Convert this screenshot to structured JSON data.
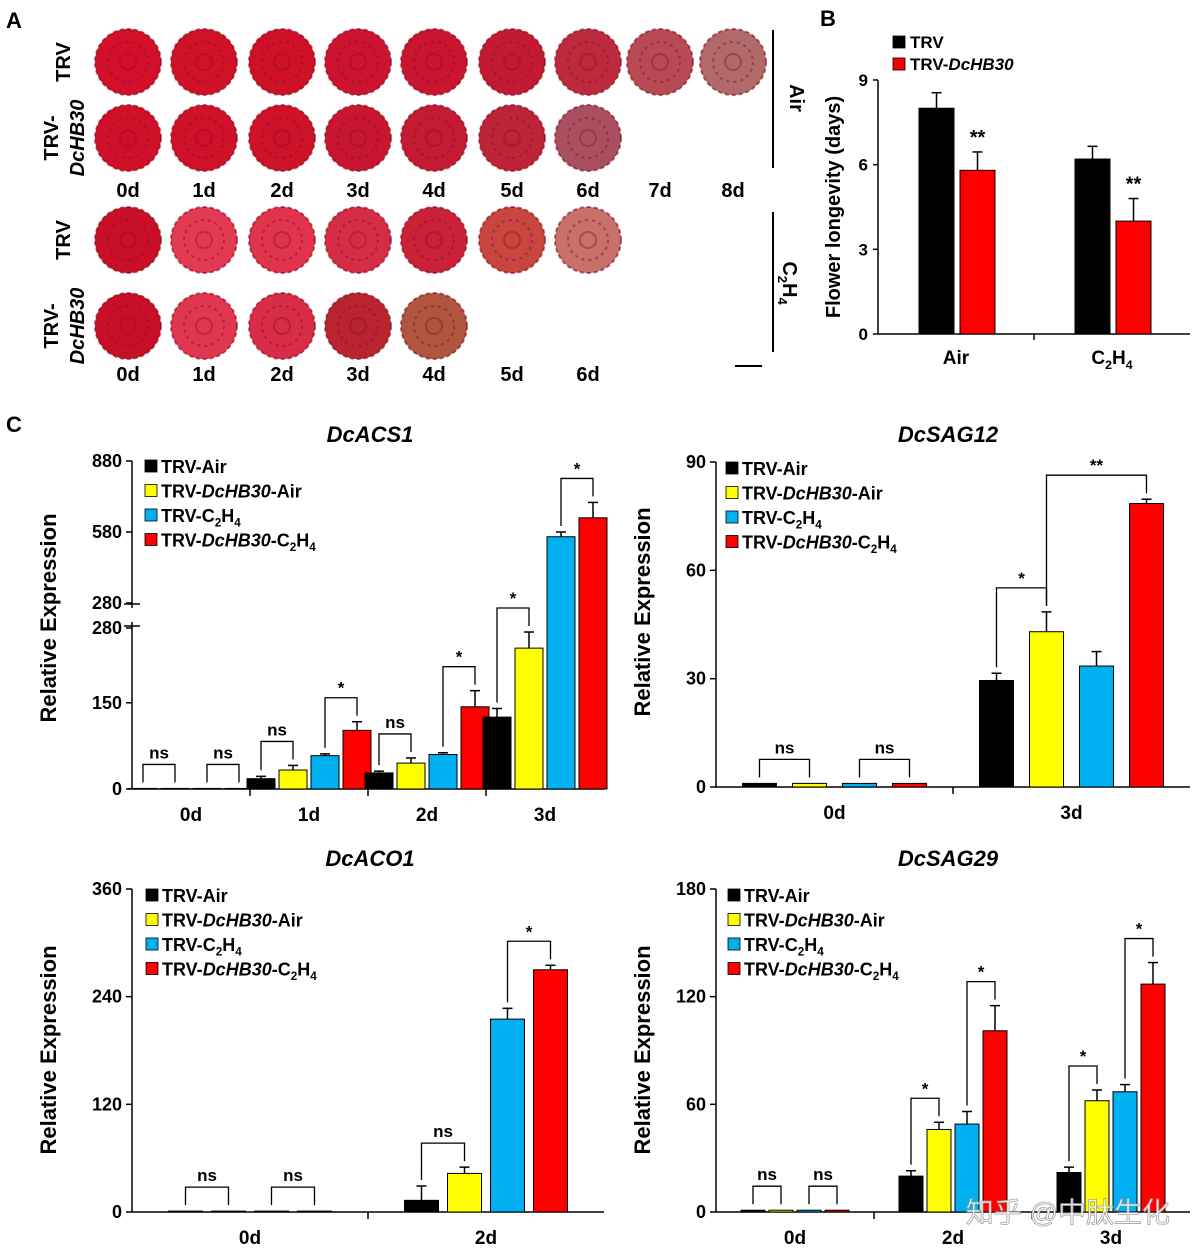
{
  "panel_labels": {
    "a": "A",
    "b": "B",
    "c": "C"
  },
  "panel_a": {
    "rows": [
      {
        "line1": "TRV",
        "line2": ""
      },
      {
        "line1": "TRV-",
        "line2": "DcHB30"
      },
      {
        "line1": "TRV",
        "line2": ""
      },
      {
        "line1": "TRV-",
        "line2": "DcHB30"
      }
    ],
    "air_days": [
      "0d",
      "1d",
      "2d",
      "3d",
      "4d",
      "5d",
      "6d",
      "7d",
      "8d"
    ],
    "eth_days": [
      "0d",
      "1d",
      "2d",
      "3d",
      "4d",
      "5d",
      "6d"
    ],
    "air_label": "Air",
    "eth_label": "C2H4",
    "flower_counts": [
      9,
      7,
      7,
      5
    ],
    "flower_colors": [
      [
        "#d2102a",
        "#d01229",
        "#cf1128",
        "#cc1430",
        "#c91530",
        "#c21a33",
        "#be2a3d",
        "#b84a55",
        "#b06a6a"
      ],
      [
        "#d01029",
        "#cf1129",
        "#cd1229",
        "#c81630",
        "#c41a33",
        "#bd2438",
        "#a85060"
      ],
      [
        "#c80f28",
        "#e23a52",
        "#e0344d",
        "#d52d45",
        "#c92238",
        "#c9463f",
        "#c8706a"
      ],
      [
        "#c80f28",
        "#e03650",
        "#d82c48",
        "#b8242f",
        "#b0553e"
      ]
    ]
  },
  "chart_data": [
    {
      "id": "B",
      "type": "bar",
      "title": "",
      "ylabel": "Flower longevity (days)",
      "xlabel": "",
      "categories": [
        "Air",
        "C2H4"
      ],
      "ylim": [
        0,
        9
      ],
      "yticks": [
        0,
        3,
        6,
        9
      ],
      "legend": "top-left",
      "series": [
        {
          "name": "TRV",
          "color": "#000000",
          "values": [
            8.0,
            6.2
          ],
          "errors": [
            0.55,
            0.45
          ]
        },
        {
          "name": "TRV-DcHB30",
          "color": "#ff0000",
          "values": [
            5.8,
            4.0
          ],
          "errors": [
            0.65,
            0.8
          ]
        }
      ],
      "annotations": [
        "**",
        "**"
      ]
    },
    {
      "id": "C1",
      "type": "bar",
      "title": "DcACS1",
      "ylabel": "Relative Expression",
      "categories": [
        "0d",
        "1d",
        "2d",
        "3d"
      ],
      "ylim": [
        0,
        880
      ],
      "axis_break": {
        "lower": [
          0,
          280
        ],
        "upper": [
          280,
          880
        ]
      },
      "yticks_lower": [
        0,
        150,
        280
      ],
      "yticks_upper": [
        280,
        580,
        880
      ],
      "legend": "top-left",
      "series": [
        {
          "name": "TRV-Air",
          "color": "#000000",
          "values": [
            1,
            18,
            28,
            125
          ],
          "errors": [
            0,
            4,
            3,
            15
          ]
        },
        {
          "name": "TRV-DcHB30-Air",
          "color": "#ffff00",
          "values": [
            1,
            33,
            45,
            245
          ],
          "errors": [
            0,
            8,
            9,
            28
          ]
        },
        {
          "name": "TRV-C2H4",
          "color": "#00b0f0",
          "values": [
            1,
            58,
            60,
            560
          ],
          "errors": [
            0,
            3,
            3,
            20
          ]
        },
        {
          "name": "TRV-DcHB30-C2H4",
          "color": "#ff0000",
          "values": [
            1,
            102,
            143,
            640
          ],
          "errors": [
            0,
            15,
            28,
            65
          ]
        }
      ],
      "significance": [
        {
          "category": "0d",
          "pairs": [
            [
              "ns",
              0,
              1
            ],
            [
              "ns",
              2,
              3
            ]
          ]
        },
        {
          "category": "1d",
          "pairs": [
            [
              "ns",
              0,
              1
            ],
            [
              "*",
              2,
              3
            ]
          ]
        },
        {
          "category": "2d",
          "pairs": [
            [
              "ns",
              0,
              1
            ],
            [
              "*",
              2,
              3
            ]
          ]
        },
        {
          "category": "3d",
          "pairs": [
            [
              "*",
              0,
              1
            ],
            [
              "*",
              2,
              3
            ]
          ]
        }
      ]
    },
    {
      "id": "C2",
      "type": "bar",
      "title": "DcSAG12",
      "ylabel": "Relative Expression",
      "categories": [
        "0d",
        "3d"
      ],
      "ylim": [
        0,
        90
      ],
      "yticks": [
        0,
        30,
        60,
        90
      ],
      "legend": "top-left",
      "series": [
        {
          "name": "TRV-Air",
          "color": "#000000",
          "values": [
            1,
            29.5
          ],
          "errors": [
            0,
            2
          ]
        },
        {
          "name": "TRV-DcHB30-Air",
          "color": "#ffff00",
          "values": [
            1,
            43
          ],
          "errors": [
            0,
            5.5
          ]
        },
        {
          "name": "TRV-C2H4",
          "color": "#00b0f0",
          "values": [
            1,
            33.5
          ],
          "errors": [
            0,
            4
          ]
        },
        {
          "name": "TRV-DcHB30-C2H4",
          "color": "#ff0000",
          "values": [
            1,
            78.5
          ],
          "errors": [
            0,
            1.2
          ]
        }
      ],
      "significance": [
        {
          "category": "0d",
          "pairs": [
            [
              "ns",
              0,
              1
            ],
            [
              "ns",
              2,
              3
            ]
          ]
        },
        {
          "category": "3d",
          "pairs": [
            [
              "*",
              0,
              1
            ],
            [
              "**",
              1,
              3
            ]
          ]
        }
      ]
    },
    {
      "id": "C3",
      "type": "bar",
      "title": "DcACO1",
      "ylabel": "Relative Expression",
      "categories": [
        "0d",
        "2d"
      ],
      "ylim": [
        0,
        360
      ],
      "yticks": [
        0,
        120,
        240,
        360
      ],
      "legend": "top-left",
      "series": [
        {
          "name": "TRV-Air",
          "color": "#000000",
          "values": [
            1,
            13
          ],
          "errors": [
            0,
            16
          ]
        },
        {
          "name": "TRV-DcHB30-Air",
          "color": "#ffff00",
          "values": [
            1,
            43
          ],
          "errors": [
            0,
            7
          ]
        },
        {
          "name": "TRV-C2H4",
          "color": "#00b0f0",
          "values": [
            1,
            215
          ],
          "errors": [
            0,
            12
          ]
        },
        {
          "name": "TRV-DcHB30-C2H4",
          "color": "#ff0000",
          "values": [
            1,
            270
          ],
          "errors": [
            0,
            5
          ]
        }
      ],
      "significance": [
        {
          "category": "0d",
          "pairs": [
            [
              "ns",
              0,
              1
            ],
            [
              "ns",
              2,
              3
            ]
          ]
        },
        {
          "category": "2d",
          "pairs": [
            [
              "ns",
              0,
              1
            ],
            [
              "*",
              2,
              3
            ]
          ]
        }
      ]
    },
    {
      "id": "C4",
      "type": "bar",
      "title": "DcSAG29",
      "ylabel": "Relative Expression",
      "categories": [
        "0d",
        "2d",
        "3d"
      ],
      "ylim": [
        0,
        180
      ],
      "yticks": [
        0,
        60,
        120,
        180
      ],
      "legend": "top-left",
      "series": [
        {
          "name": "TRV-Air",
          "color": "#000000",
          "values": [
            1,
            20,
            22
          ],
          "errors": [
            0,
            3,
            3
          ]
        },
        {
          "name": "TRV-DcHB30-Air",
          "color": "#ffff00",
          "values": [
            1,
            46,
            62
          ],
          "errors": [
            0,
            4,
            6
          ]
        },
        {
          "name": "TRV-C2H4",
          "color": "#00b0f0",
          "values": [
            1,
            49,
            67
          ],
          "errors": [
            0,
            7,
            4
          ]
        },
        {
          "name": "TRV-DcHB30-C2H4",
          "color": "#ff0000",
          "values": [
            1,
            101,
            127
          ],
          "errors": [
            0,
            14,
            12
          ]
        }
      ],
      "significance": [
        {
          "category": "0d",
          "pairs": [
            [
              "ns",
              0,
              1
            ],
            [
              "ns",
              2,
              3
            ]
          ]
        },
        {
          "category": "2d",
          "pairs": [
            [
              "*",
              0,
              1
            ],
            [
              "*",
              2,
              3
            ]
          ]
        },
        {
          "category": "3d",
          "pairs": [
            [
              "*",
              0,
              1
            ],
            [
              "*",
              2,
              3
            ]
          ]
        }
      ]
    }
  ],
  "watermark": "知乎 @中肽生化"
}
